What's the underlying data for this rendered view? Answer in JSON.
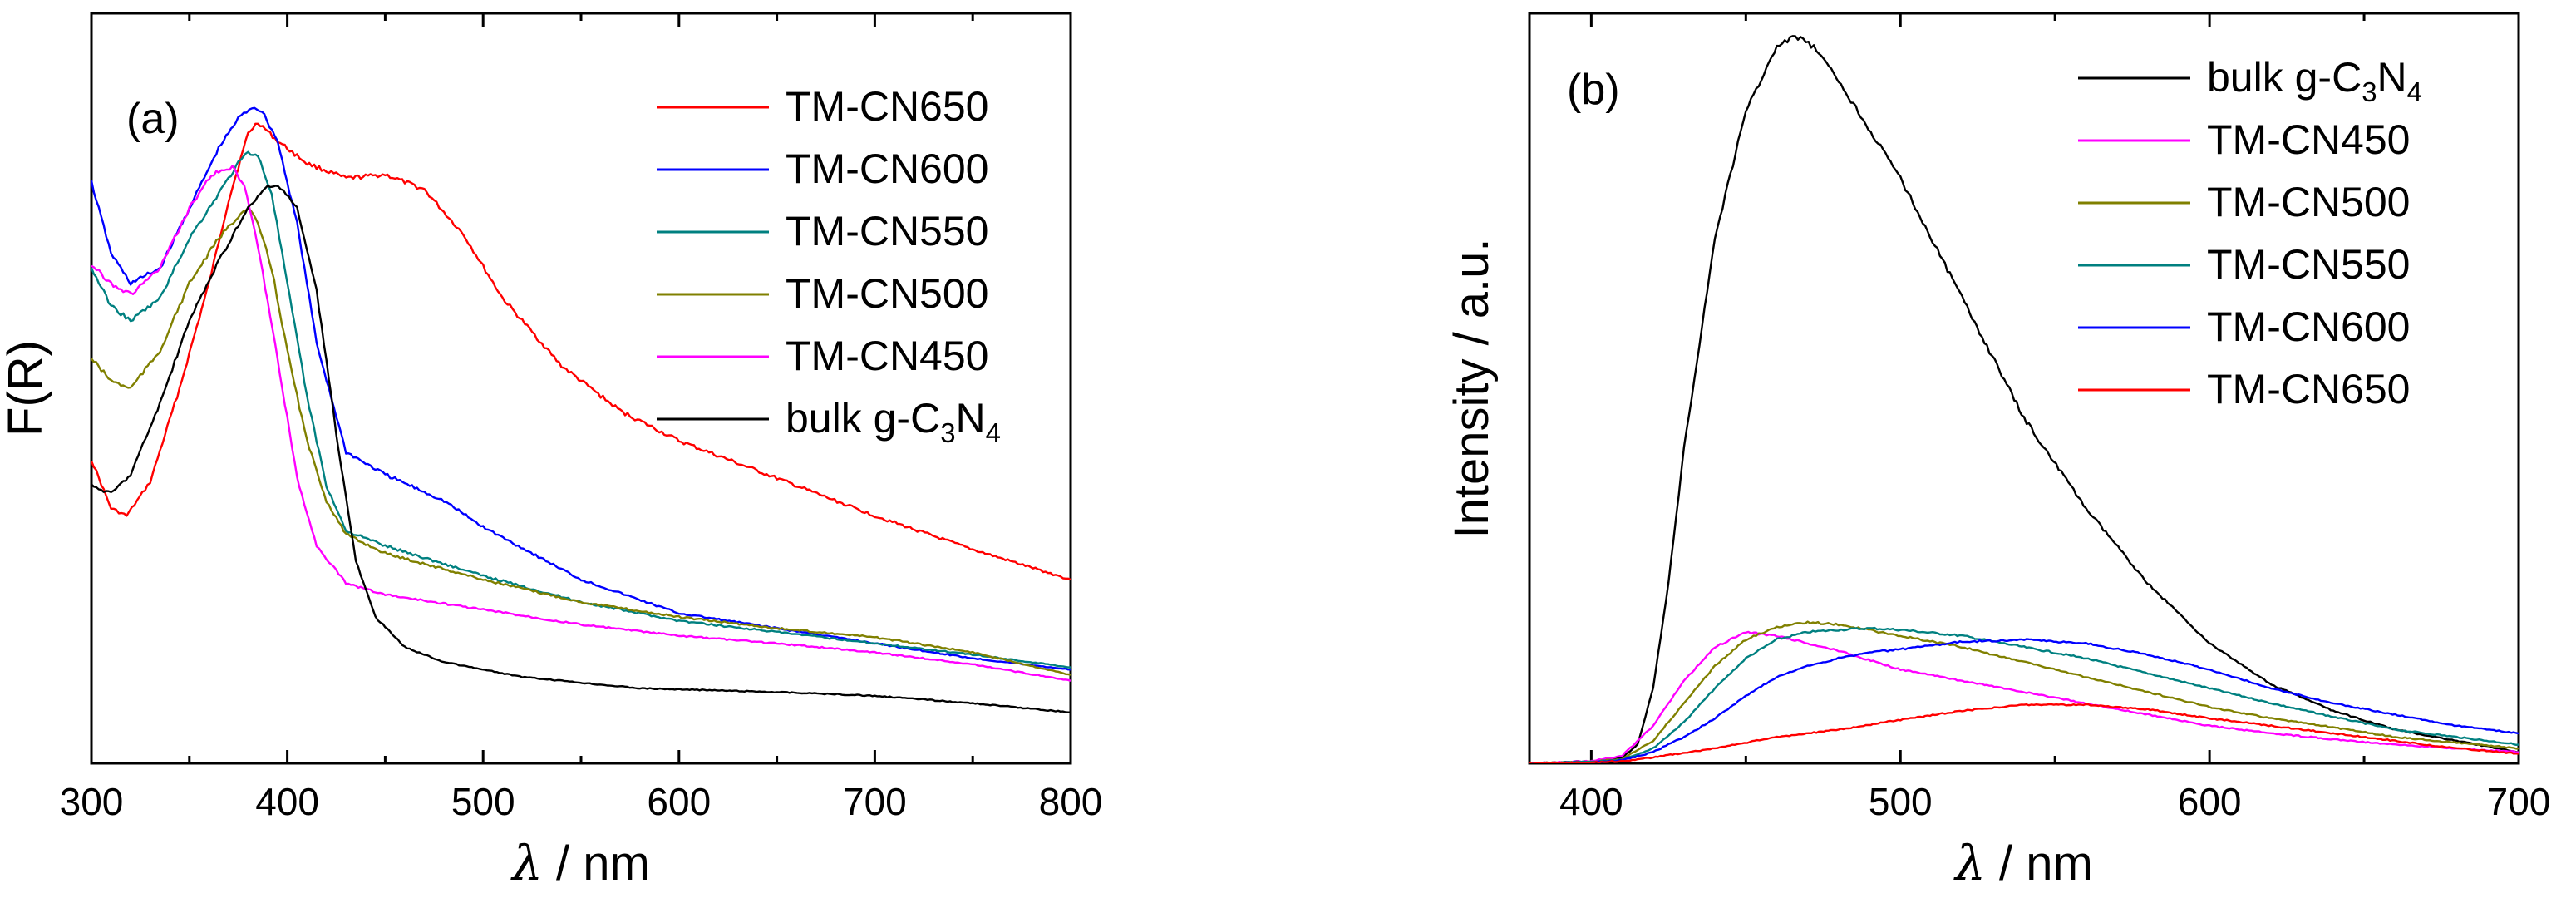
{
  "chart_data": [
    {
      "type": "line",
      "panel_label": "(a)",
      "xlabel_symbol": "λ",
      "xlabel_unit": " / nm",
      "ylabel": "F(R)",
      "xlim": [
        300,
        800
      ],
      "ylim": [
        0,
        1
      ],
      "yticks_shown": false,
      "xticks": [
        300,
        400,
        500,
        600,
        700,
        800
      ],
      "legend": "top-right",
      "series": [
        {
          "name": "TM-CN650",
          "label_parts": [
            "TM-CN650"
          ],
          "color": "#ff0000",
          "x": [
            300,
            310,
            318,
            330,
            345,
            360,
            370,
            380,
            385,
            395,
            410,
            430,
            450,
            470,
            490,
            510,
            540,
            570,
            600,
            650,
            700,
            750,
            800
          ],
          "y": [
            0.405,
            0.34,
            0.33,
            0.375,
            0.5,
            0.64,
            0.75,
            0.84,
            0.855,
            0.83,
            0.8,
            0.78,
            0.785,
            0.765,
            0.705,
            0.62,
            0.53,
            0.47,
            0.43,
            0.38,
            0.33,
            0.285,
            0.245
          ]
        },
        {
          "name": "TM-CN600",
          "label_parts": [
            "TM-CN600"
          ],
          "color": "#0000ff",
          "x": [
            300,
            310,
            320,
            335,
            350,
            365,
            375,
            382,
            387,
            395,
            405,
            415,
            430,
            450,
            480,
            500,
            550,
            600,
            650,
            700,
            750,
            800
          ],
          "y": [
            0.775,
            0.68,
            0.64,
            0.66,
            0.74,
            0.82,
            0.86,
            0.875,
            0.87,
            0.83,
            0.72,
            0.56,
            0.415,
            0.385,
            0.35,
            0.315,
            0.245,
            0.2,
            0.18,
            0.16,
            0.14,
            0.125
          ]
        },
        {
          "name": "TM-CN550",
          "label_parts": [
            "TM-CN550"
          ],
          "color": "#008080",
          "x": [
            300,
            310,
            320,
            335,
            350,
            365,
            375,
            380,
            385,
            392,
            400,
            410,
            420,
            430,
            450,
            500,
            550,
            600,
            650,
            700,
            750,
            800
          ],
          "y": [
            0.66,
            0.61,
            0.59,
            0.62,
            0.7,
            0.76,
            0.8,
            0.815,
            0.81,
            0.76,
            0.64,
            0.49,
            0.37,
            0.31,
            0.29,
            0.25,
            0.215,
            0.19,
            0.175,
            0.16,
            0.145,
            0.128
          ]
        },
        {
          "name": "TM-CN500",
          "label_parts": [
            "TM-CN500"
          ],
          "color": "#808000",
          "x": [
            300,
            310,
            320,
            335,
            350,
            365,
            375,
            380,
            385,
            392,
            400,
            410,
            420,
            430,
            450,
            500,
            550,
            600,
            650,
            700,
            750,
            800
          ],
          "y": [
            0.54,
            0.51,
            0.5,
            0.55,
            0.64,
            0.7,
            0.73,
            0.74,
            0.72,
            0.66,
            0.55,
            0.43,
            0.35,
            0.305,
            0.28,
            0.245,
            0.215,
            0.195,
            0.18,
            0.168,
            0.148,
            0.118
          ]
        },
        {
          "name": "TM-CN450",
          "label_parts": [
            "TM-CN450"
          ],
          "color": "#ff00ff",
          "x": [
            300,
            310,
            320,
            335,
            350,
            360,
            365,
            372,
            378,
            385,
            395,
            405,
            415,
            430,
            450,
            500,
            550,
            600,
            650,
            700,
            750,
            800
          ],
          "y": [
            0.665,
            0.64,
            0.625,
            0.66,
            0.74,
            0.78,
            0.79,
            0.795,
            0.77,
            0.69,
            0.54,
            0.38,
            0.29,
            0.24,
            0.225,
            0.205,
            0.185,
            0.17,
            0.16,
            0.148,
            0.132,
            0.11
          ]
        },
        {
          "name": "bulk g-C3N4",
          "label_parts": [
            "bulk g-C",
            "3",
            "N",
            "4"
          ],
          "color": "#000000",
          "x": [
            300,
            310,
            320,
            335,
            350,
            365,
            380,
            390,
            398,
            405,
            415,
            425,
            435,
            445,
            460,
            480,
            520,
            580,
            650,
            700,
            750,
            800
          ],
          "y": [
            0.37,
            0.36,
            0.385,
            0.48,
            0.59,
            0.67,
            0.74,
            0.77,
            0.765,
            0.74,
            0.63,
            0.44,
            0.27,
            0.195,
            0.155,
            0.135,
            0.115,
            0.1,
            0.095,
            0.09,
            0.08,
            0.068
          ]
        }
      ]
    },
    {
      "type": "line",
      "panel_label": "(b)",
      "xlabel_symbol": "λ",
      "xlabel_unit": " / nm",
      "ylabel": "Intensity / a.u.",
      "xlim": [
        380,
        700
      ],
      "ylim": [
        0,
        1
      ],
      "yticks_shown": false,
      "xticks": [
        400,
        500,
        600,
        700
      ],
      "legend": "top-right",
      "series": [
        {
          "name": "bulk g-C3N4",
          "label_parts": [
            "bulk g-C",
            "3",
            "N",
            "4"
          ],
          "color": "#000000",
          "x": [
            380,
            400,
            410,
            415,
            420,
            425,
            430,
            440,
            450,
            460,
            466,
            472,
            480,
            500,
            520,
            540,
            560,
            580,
            600,
            620,
            640,
            660,
            680,
            700
          ],
          "y": [
            0.0,
            0.002,
            0.008,
            0.025,
            0.1,
            0.24,
            0.42,
            0.7,
            0.87,
            0.955,
            0.97,
            0.955,
            0.91,
            0.78,
            0.62,
            0.46,
            0.34,
            0.24,
            0.16,
            0.105,
            0.07,
            0.045,
            0.03,
            0.015
          ]
        },
        {
          "name": "TM-CN450",
          "label_parts": [
            "TM-CN450"
          ],
          "color": "#ff00ff",
          "x": [
            380,
            400,
            410,
            420,
            430,
            440,
            450,
            460,
            470,
            480,
            500,
            520,
            540,
            560,
            580,
            600,
            620,
            640,
            660,
            700
          ],
          "y": [
            0.0,
            0.003,
            0.01,
            0.05,
            0.11,
            0.155,
            0.175,
            0.17,
            0.16,
            0.15,
            0.125,
            0.11,
            0.095,
            0.08,
            0.065,
            0.05,
            0.04,
            0.032,
            0.025,
            0.015
          ]
        },
        {
          "name": "TM-CN500",
          "label_parts": [
            "TM-CN500"
          ],
          "color": "#808000",
          "x": [
            380,
            400,
            410,
            420,
            430,
            440,
            450,
            460,
            470,
            480,
            500,
            520,
            540,
            560,
            580,
            600,
            620,
            640,
            660,
            700
          ],
          "y": [
            0.0,
            0.002,
            0.006,
            0.03,
            0.08,
            0.13,
            0.165,
            0.182,
            0.188,
            0.185,
            0.17,
            0.155,
            0.135,
            0.115,
            0.095,
            0.075,
            0.06,
            0.048,
            0.035,
            0.02
          ]
        },
        {
          "name": "TM-CN550",
          "label_parts": [
            "TM-CN550"
          ],
          "color": "#008080",
          "x": [
            380,
            400,
            410,
            420,
            430,
            440,
            450,
            460,
            470,
            480,
            490,
            500,
            520,
            540,
            560,
            580,
            600,
            620,
            640,
            660,
            700
          ],
          "y": [
            0.0,
            0.002,
            0.005,
            0.02,
            0.055,
            0.1,
            0.14,
            0.165,
            0.175,
            0.178,
            0.18,
            0.178,
            0.17,
            0.155,
            0.14,
            0.12,
            0.1,
            0.08,
            0.062,
            0.045,
            0.025
          ]
        },
        {
          "name": "TM-CN600",
          "label_parts": [
            "TM-CN600"
          ],
          "color": "#0000ff",
          "x": [
            380,
            400,
            410,
            420,
            430,
            440,
            450,
            460,
            470,
            480,
            490,
            500,
            520,
            540,
            560,
            580,
            600,
            620,
            640,
            660,
            680,
            700
          ],
          "y": [
            0.0,
            0.001,
            0.004,
            0.015,
            0.035,
            0.06,
            0.09,
            0.115,
            0.13,
            0.14,
            0.148,
            0.152,
            0.162,
            0.165,
            0.16,
            0.145,
            0.125,
            0.1,
            0.08,
            0.065,
            0.05,
            0.04
          ]
        },
        {
          "name": "TM-CN650",
          "label_parts": [
            "TM-CN650"
          ],
          "color": "#ff0000",
          "x": [
            380,
            400,
            410,
            420,
            440,
            460,
            480,
            500,
            520,
            540,
            560,
            580,
            600,
            620,
            640,
            660,
            680,
            700
          ],
          "y": [
            0.0,
            0.001,
            0.003,
            0.008,
            0.02,
            0.035,
            0.045,
            0.058,
            0.07,
            0.078,
            0.078,
            0.072,
            0.06,
            0.05,
            0.04,
            0.03,
            0.02,
            0.013
          ]
        }
      ]
    }
  ]
}
